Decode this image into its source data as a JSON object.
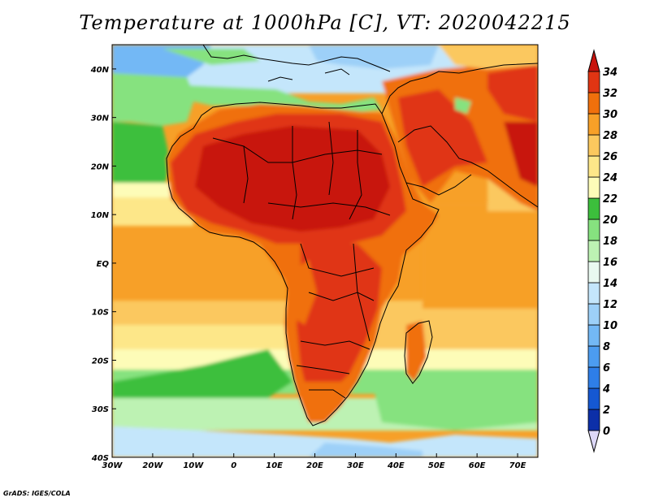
{
  "title": "Temperature at 1000hPa [C], VT: 2020042215",
  "credit": "GrADS: IGES/COLA",
  "map": {
    "lon_range": [
      -30,
      75
    ],
    "lat_range": [
      -40,
      45
    ],
    "x_ticks": [
      "30W",
      "20W",
      "10W",
      "0",
      "10E",
      "20E",
      "30E",
      "40E",
      "50E",
      "60E",
      "70E"
    ],
    "y_ticks": [
      "40S",
      "30S",
      "20S",
      "10S",
      "EQ",
      "10N",
      "20N",
      "30N",
      "40N"
    ]
  },
  "colorbar": {
    "levels": [
      "0",
      "2",
      "4",
      "6",
      "8",
      "10",
      "12",
      "14",
      "16",
      "18",
      "20",
      "22",
      "24",
      "26",
      "28",
      "30",
      "32",
      "34"
    ],
    "colors": [
      "#0a0d6e",
      "#0c2fa8",
      "#1558d2",
      "#2e7ee8",
      "#4c9cf0",
      "#73b8f5",
      "#9dd0f8",
      "#c4e6fb",
      "#e9f9f0",
      "#bdf2b3",
      "#86e27f",
      "#3cbf3c",
      "#fdfcb8",
      "#fde789",
      "#fbc85e",
      "#f7a028",
      "#f0700c",
      "#e03513",
      "#c8140e"
    ]
  }
}
